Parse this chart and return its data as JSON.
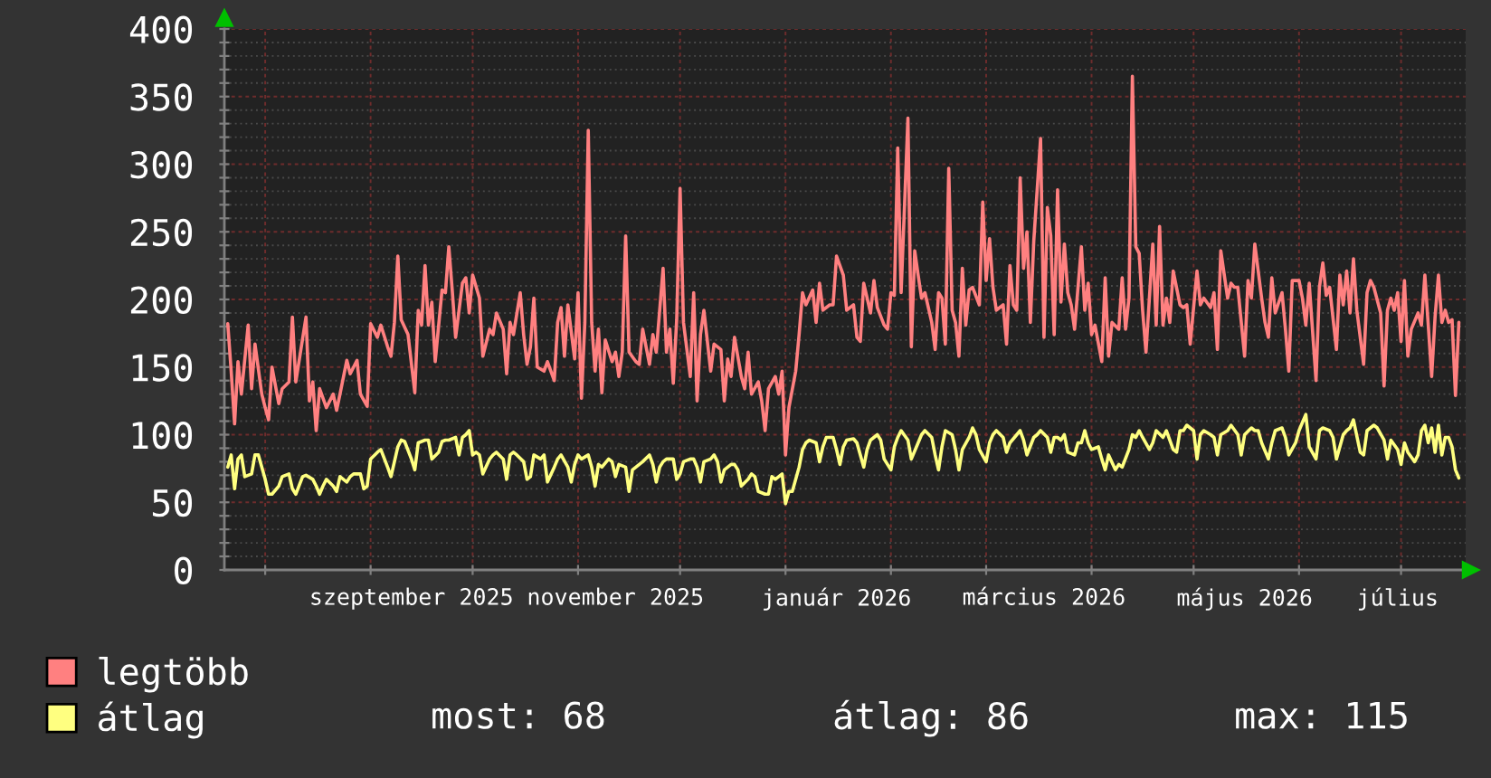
{
  "chart_data": {
    "type": "line",
    "xlim": [
      "2025-07-20",
      "2026-07-20"
    ],
    "xticks": [
      {
        "value": "2025-08-01",
        "label": null
      },
      {
        "value": "2025-09-01",
        "label": null
      },
      {
        "value": "2025-09-13",
        "label": "szeptember 2025"
      },
      {
        "value": "2025-10-01",
        "label": null
      },
      {
        "value": "2025-11-01",
        "label": null
      },
      {
        "value": "2025-11-12",
        "label": "november 2025"
      },
      {
        "value": "2025-12-01",
        "label": null
      },
      {
        "value": "2026-01-01",
        "label": null
      },
      {
        "value": "2026-01-16",
        "label": "január 2026"
      },
      {
        "value": "2026-02-01",
        "label": null
      },
      {
        "value": "2026-03-01",
        "label": null
      },
      {
        "value": "2026-03-18",
        "label": "március 2026"
      },
      {
        "value": "2026-04-01",
        "label": null
      },
      {
        "value": "2026-05-01",
        "label": null
      },
      {
        "value": "2026-05-16",
        "label": "május 2026"
      },
      {
        "value": "2026-06-01",
        "label": null
      },
      {
        "value": "2026-06-30",
        "label": "július"
      },
      {
        "value": "2026-07-01",
        "label": null
      }
    ],
    "ylim": [
      0,
      400
    ],
    "yticks": [
      0,
      {
        "value": 10,
        "label": null
      },
      {
        "value": 20,
        "label": null
      },
      {
        "value": 30,
        "label": null
      },
      {
        "value": 40,
        "label": null
      },
      50,
      {
        "value": 60,
        "label": null
      },
      {
        "value": 70,
        "label": null
      },
      {
        "value": 80,
        "label": null
      },
      {
        "value": 90,
        "label": null
      },
      100,
      {
        "value": 110,
        "label": null
      },
      {
        "value": 120,
        "label": null
      },
      {
        "value": 130,
        "label": null
      },
      {
        "value": 140,
        "label": null
      },
      150,
      {
        "value": 160,
        "label": null
      },
      {
        "value": 170,
        "label": null
      },
      {
        "value": 180,
        "label": null
      },
      {
        "value": 190,
        "label": null
      },
      200,
      {
        "value": 210,
        "label": null
      },
      {
        "value": 220,
        "label": null
      },
      {
        "value": 230,
        "label": null
      },
      {
        "value": 240,
        "label": null
      },
      250,
      {
        "value": 260,
        "label": null
      },
      {
        "value": 270,
        "label": null
      },
      {
        "value": 280,
        "label": null
      },
      {
        "value": 290,
        "label": null
      },
      300,
      {
        "value": 310,
        "label": null
      },
      {
        "value": 320,
        "label": null
      },
      {
        "value": 330,
        "label": null
      },
      {
        "value": 340,
        "label": null
      },
      350,
      {
        "value": 360,
        "label": null
      },
      {
        "value": 370,
        "label": null
      },
      {
        "value": 380,
        "label": null
      },
      {
        "value": 390,
        "label": null
      },
      400
    ],
    "grid": true,
    "legend": "bottom",
    "series": [
      {
        "name": "legtöbb",
        "color": "#ff8080",
        "x": [
          "2025-07-21",
          "2025-07-22",
          "2025-07-23",
          "2025-07-24",
          "2025-07-25",
          "2025-07-27",
          "2025-07-28",
          "2025-07-29",
          "2025-07-31",
          "2025-08-01",
          "2025-08-02",
          "2025-08-03",
          "2025-08-05",
          "2025-08-06",
          "2025-08-08",
          "2025-08-09",
          "2025-08-10",
          "2025-08-13",
          "2025-08-14",
          "2025-08-15",
          "2025-08-16",
          "2025-08-17",
          "2025-08-19",
          "2025-08-21",
          "2025-08-22",
          "2025-08-23",
          "2025-08-25",
          "2025-08-26",
          "2025-08-28",
          "2025-08-29",
          "2025-08-31",
          "2025-09-01",
          "2025-09-03",
          "2025-09-04",
          "2025-09-06",
          "2025-09-07",
          "2025-09-08",
          "2025-09-09",
          "2025-09-10",
          "2025-09-12",
          "2025-09-14",
          "2025-09-15",
          "2025-09-16",
          "2025-09-17",
          "2025-09-18",
          "2025-09-19",
          "2025-09-20",
          "2025-09-22",
          "2025-09-23",
          "2025-09-24",
          "2025-09-25",
          "2025-09-26",
          "2025-09-28",
          "2025-09-29",
          "2025-09-30",
          "2025-10-01",
          "2025-10-03",
          "2025-10-04",
          "2025-10-06",
          "2025-10-07",
          "2025-10-08",
          "2025-10-10",
          "2025-10-11",
          "2025-10-12",
          "2025-10-13",
          "2025-10-15",
          "2025-10-16",
          "2025-10-17",
          "2025-10-18",
          "2025-10-19",
          "2025-10-20",
          "2025-10-22",
          "2025-10-23",
          "2025-10-25",
          "2025-10-26",
          "2025-10-27",
          "2025-10-28",
          "2025-10-29",
          "2025-10-31",
          "2025-11-01",
          "2025-11-02",
          "2025-11-03",
          "2025-11-04",
          "2025-11-05",
          "2025-11-06",
          "2025-11-07",
          "2025-11-08",
          "2025-11-09",
          "2025-11-11",
          "2025-11-12",
          "2025-11-13",
          "2025-11-14",
          "2025-11-15",
          "2025-11-16",
          "2025-11-18",
          "2025-11-19",
          "2025-11-20",
          "2025-11-22",
          "2025-11-23",
          "2025-11-24",
          "2025-11-26",
          "2025-11-27",
          "2025-11-28",
          "2025-11-29",
          "2025-11-30",
          "2025-12-01",
          "2025-12-02",
          "2025-12-04",
          "2025-12-05",
          "2025-12-06",
          "2025-12-07",
          "2025-12-08",
          "2025-12-10",
          "2025-12-11",
          "2025-12-13",
          "2025-12-14",
          "2025-12-15",
          "2025-12-16",
          "2025-12-17",
          "2025-12-19",
          "2025-12-20",
          "2025-12-21",
          "2025-12-22",
          "2025-12-24",
          "2025-12-25",
          "2025-12-26",
          "2025-12-27",
          "2025-12-29",
          "2025-12-30",
          "2025-12-31",
          "2026-01-01",
          "2026-01-02",
          "2026-01-04",
          "2026-01-05",
          "2026-01-06",
          "2026-01-07",
          "2026-01-09",
          "2026-01-10",
          "2026-01-11",
          "2026-01-12",
          "2026-01-14",
          "2026-01-15",
          "2026-01-16",
          "2026-01-18",
          "2026-01-19",
          "2026-01-21",
          "2026-01-22",
          "2026-01-23",
          "2026-01-24",
          "2026-01-26",
          "2026-01-27",
          "2026-01-28",
          "2026-01-30",
          "2026-01-31",
          "2026-02-01",
          "2026-02-02",
          "2026-02-03",
          "2026-02-04",
          "2026-02-06",
          "2026-02-07",
          "2026-02-08",
          "2026-02-09",
          "2026-02-10",
          "2026-02-11",
          "2026-02-13",
          "2026-02-14",
          "2026-02-15",
          "2026-02-16",
          "2026-02-17",
          "2026-02-18",
          "2026-02-19",
          "2026-02-20",
          "2026-02-21",
          "2026-02-22",
          "2026-02-23",
          "2026-02-24",
          "2026-02-25",
          "2026-02-27",
          "2026-02-28",
          "2026-03-01",
          "2026-03-02",
          "2026-03-03",
          "2026-03-04",
          "2026-03-06",
          "2026-03-07",
          "2026-03-08",
          "2026-03-09",
          "2026-03-10",
          "2026-03-11",
          "2026-03-12",
          "2026-03-13",
          "2026-03-14",
          "2026-03-15",
          "2026-03-17",
          "2026-03-18",
          "2026-03-19",
          "2026-03-20",
          "2026-03-21",
          "2026-03-22",
          "2026-03-23",
          "2026-03-24",
          "2026-03-25",
          "2026-03-26",
          "2026-03-27",
          "2026-03-29",
          "2026-03-30",
          "2026-03-31",
          "2026-04-01",
          "2026-04-02",
          "2026-04-04",
          "2026-04-05",
          "2026-04-06",
          "2026-04-07",
          "2026-04-09",
          "2026-04-10",
          "2026-04-11",
          "2026-04-12",
          "2026-04-13",
          "2026-04-14",
          "2026-04-15",
          "2026-04-16",
          "2026-04-17",
          "2026-04-19",
          "2026-04-20",
          "2026-04-21",
          "2026-04-22",
          "2026-04-23",
          "2026-04-24",
          "2026-04-25",
          "2026-04-27",
          "2026-04-28",
          "2026-04-29",
          "2026-04-30",
          "2026-05-02",
          "2026-05-03",
          "2026-05-04",
          "2026-05-06",
          "2026-05-07",
          "2026-05-08",
          "2026-05-09",
          "2026-05-11",
          "2026-05-12",
          "2026-05-13",
          "2026-05-14",
          "2026-05-16",
          "2026-05-17",
          "2026-05-18",
          "2026-05-19",
          "2026-05-21",
          "2026-05-22",
          "2026-05-23",
          "2026-05-24",
          "2026-05-25",
          "2026-05-27",
          "2026-05-28",
          "2026-05-29",
          "2026-05-30",
          "2026-06-01",
          "2026-06-02",
          "2026-06-03",
          "2026-06-04",
          "2026-06-06",
          "2026-06-07",
          "2026-06-08",
          "2026-06-09",
          "2026-06-10",
          "2026-06-12",
          "2026-06-13",
          "2026-06-14",
          "2026-06-15",
          "2026-06-16",
          "2026-06-17",
          "2026-06-18",
          "2026-06-20",
          "2026-06-21",
          "2026-06-22",
          "2026-06-23",
          "2026-06-25",
          "2026-06-26",
          "2026-06-27",
          "2026-06-28",
          "2026-06-29",
          "2026-06-30",
          "2026-07-01",
          "2026-07-02",
          "2026-07-03",
          "2026-07-04",
          "2026-07-06",
          "2026-07-07",
          "2026-07-08",
          "2026-07-09",
          "2026-07-10",
          "2026-07-11",
          "2026-07-12",
          "2026-07-13",
          "2026-07-14",
          "2026-07-15",
          "2026-07-16",
          "2026-07-17",
          "2026-07-18"
        ],
        "values": [
          182,
          147,
          108,
          154,
          130,
          181,
          134,
          167,
          130,
          120,
          111,
          150,
          123,
          134,
          139,
          187,
          139,
          187,
          125,
          139,
          103,
          134,
          120,
          130,
          118,
          130,
          155,
          145,
          155,
          130,
          121,
          182,
          172,
          181,
          165,
          158,
          183,
          232,
          185,
          174,
          131,
          192,
          181,
          225,
          181,
          198,
          154,
          207,
          205,
          239,
          207,
          172,
          212,
          216,
          190,
          218,
          201,
          158,
          178,
          174,
          190,
          178,
          145,
          183,
          174,
          205,
          174,
          152,
          165,
          201,
          150,
          147,
          154,
          140,
          183,
          194,
          158,
          196,
          156,
          205,
          127,
          183,
          325,
          183,
          147,
          178,
          131,
          170,
          154,
          161,
          143,
          161,
          247,
          161,
          154,
          152,
          178,
          152,
          174,
          161,
          223,
          161,
          178,
          138,
          185,
          282,
          183,
          143,
          205,
          125,
          174,
          192,
          147,
          167,
          163,
          125,
          156,
          143,
          172,
          143,
          134,
          161,
          130,
          139,
          125,
          103,
          134,
          143,
          130,
          147,
          85,
          120,
          147,
          174,
          205,
          196,
          207,
          183,
          212,
          192,
          196,
          196,
          232,
          218,
          192,
          196,
          172,
          169,
          212,
          190,
          214,
          194,
          181,
          178,
          205,
          203,
          312,
          205,
          334,
          165,
          236,
          218,
          201,
          205,
          183,
          163,
          205,
          201,
          167,
          297,
          192,
          183,
          158,
          223,
          181,
          207,
          209,
          196,
          272,
          214,
          245,
          209,
          192,
          196,
          167,
          225,
          196,
          192,
          290,
          223,
          250,
          183,
          243,
          319,
          172,
          268,
          247,
          174,
          281,
          198,
          241,
          205,
          196,
          178,
          239,
          192,
          212,
          174,
          181,
          154,
          216,
          158,
          183,
          178,
          216,
          178,
          201,
          365,
          239,
          234,
          192,
          161,
          241,
          181,
          254,
          181,
          201,
          183,
          221,
          196,
          194,
          196,
          167,
          221,
          196,
          201,
          194,
          205,
          163,
          236,
          201,
          212,
          209,
          209,
          158,
          214,
          201,
          241,
          201,
          183,
          172,
          216,
          190,
          205,
          178,
          147,
          214,
          214,
          201,
          181,
          212,
          140,
          209,
          227,
          203,
          209,
          163,
          218,
          196,
          221,
          190,
          230,
          192,
          152,
          205,
          214,
          209,
          190,
          136,
          192,
          201,
          192,
          205,
          169,
          214,
          158,
          178,
          190,
          181,
          218,
          181,
          143,
          187,
          218,
          183,
          192,
          183,
          185,
          129,
          183
        ]
      },
      {
        "name": "átlag",
        "color": "#ffff80",
        "x": [
          "2025-07-21",
          "2025-07-22",
          "2025-07-23",
          "2025-07-24",
          "2025-07-25",
          "2025-07-26",
          "2025-07-28",
          "2025-07-29",
          "2025-07-30",
          "2025-08-01",
          "2025-08-02",
          "2025-08-03",
          "2025-08-05",
          "2025-08-06",
          "2025-08-08",
          "2025-08-09",
          "2025-08-10",
          "2025-08-12",
          "2025-08-13",
          "2025-08-15",
          "2025-08-16",
          "2025-08-17",
          "2025-08-18",
          "2025-08-19",
          "2025-08-21",
          "2025-08-22",
          "2025-08-23",
          "2025-08-25",
          "2025-08-26",
          "2025-08-27",
          "2025-08-29",
          "2025-08-30",
          "2025-08-31",
          "2025-09-01",
          "2025-09-03",
          "2025-09-04",
          "2025-09-06",
          "2025-09-07",
          "2025-09-09",
          "2025-09-10",
          "2025-09-11",
          "2025-09-13",
          "2025-09-14",
          "2025-09-15",
          "2025-09-17",
          "2025-09-18",
          "2025-09-19",
          "2025-09-21",
          "2025-09-22",
          "2025-09-23",
          "2025-09-24",
          "2025-09-26",
          "2025-09-27",
          "2025-09-28",
          "2025-09-29",
          "2025-09-30",
          "2025-10-01",
          "2025-10-02",
          "2025-10-03",
          "2025-10-04",
          "2025-10-06",
          "2025-10-07",
          "2025-10-08",
          "2025-10-10",
          "2025-10-11",
          "2025-10-12",
          "2025-10-13",
          "2025-10-14",
          "2025-10-16",
          "2025-10-17",
          "2025-10-18",
          "2025-10-19",
          "2025-10-21",
          "2025-10-22",
          "2025-10-23",
          "2025-10-25",
          "2025-10-26",
          "2025-10-27",
          "2025-10-29",
          "2025-10-30",
          "2025-10-31",
          "2025-11-01",
          "2025-11-02",
          "2025-11-04",
          "2025-11-05",
          "2025-11-06",
          "2025-11-07",
          "2025-11-08",
          "2025-11-10",
          "2025-11-11",
          "2025-11-12",
          "2025-11-13",
          "2025-11-15",
          "2025-11-16",
          "2025-11-17",
          "2025-11-18",
          "2025-11-19",
          "2025-11-20",
          "2025-11-22",
          "2025-11-23",
          "2025-11-24",
          "2025-11-25",
          "2025-11-26",
          "2025-11-27",
          "2025-11-29",
          "2025-11-30",
          "2025-12-01",
          "2025-12-02",
          "2025-12-04",
          "2025-12-05",
          "2025-12-06",
          "2025-12-07",
          "2025-12-08",
          "2025-12-10",
          "2025-12-11",
          "2025-12-12",
          "2025-12-13",
          "2025-12-14",
          "2025-12-16",
          "2025-12-17",
          "2025-12-18",
          "2025-12-19",
          "2025-12-21",
          "2025-12-22",
          "2025-12-23",
          "2025-12-24",
          "2025-12-26",
          "2025-12-27",
          "2025-12-28",
          "2025-12-29",
          "2025-12-31",
          "2026-01-01",
          "2026-01-02",
          "2026-01-03",
          "2026-01-05",
          "2026-01-06",
          "2026-01-07",
          "2026-01-08",
          "2026-01-10",
          "2026-01-11",
          "2026-01-12",
          "2026-01-13",
          "2026-01-15",
          "2026-01-16",
          "2026-01-17",
          "2026-01-18",
          "2026-01-19",
          "2026-01-21",
          "2026-01-22",
          "2026-01-24",
          "2026-01-25",
          "2026-01-26",
          "2026-01-28",
          "2026-01-29",
          "2026-01-30",
          "2026-02-01",
          "2026-02-02",
          "2026-02-03",
          "2026-02-04",
          "2026-02-06",
          "2026-02-07",
          "2026-02-09",
          "2026-02-10",
          "2026-02-11",
          "2026-02-13",
          "2026-02-14",
          "2026-02-15",
          "2026-02-16",
          "2026-02-17",
          "2026-02-19",
          "2026-02-20",
          "2026-02-21",
          "2026-02-22",
          "2026-02-24",
          "2026-02-25",
          "2026-02-26",
          "2026-02-27",
          "2026-03-01",
          "2026-03-02",
          "2026-03-03",
          "2026-03-04",
          "2026-03-06",
          "2026-03-07",
          "2026-03-08",
          "2026-03-10",
          "2026-03-11",
          "2026-03-12",
          "2026-03-13",
          "2026-03-15",
          "2026-03-16",
          "2026-03-17",
          "2026-03-19",
          "2026-03-20",
          "2026-03-21",
          "2026-03-22",
          "2026-03-23",
          "2026-03-24",
          "2026-03-25",
          "2026-03-27",
          "2026-03-28",
          "2026-03-29",
          "2026-03-30",
          "2026-03-31",
          "2026-04-01",
          "2026-04-03",
          "2026-04-04",
          "2026-04-05",
          "2026-04-06",
          "2026-04-08",
          "2026-04-09",
          "2026-04-10",
          "2026-04-12",
          "2026-04-13",
          "2026-04-14",
          "2026-04-15",
          "2026-04-16",
          "2026-04-18",
          "2026-04-19",
          "2026-04-20",
          "2026-04-22",
          "2026-04-23",
          "2026-04-25",
          "2026-04-26",
          "2026-04-27",
          "2026-04-28",
          "2026-04-29",
          "2026-05-01",
          "2026-05-02",
          "2026-05-03",
          "2026-05-04",
          "2026-05-06",
          "2026-05-07",
          "2026-05-08",
          "2026-05-09",
          "2026-05-11",
          "2026-05-12",
          "2026-05-14",
          "2026-05-15",
          "2026-05-16",
          "2026-05-18",
          "2026-05-19",
          "2026-05-20",
          "2026-05-21",
          "2026-05-23",
          "2026-05-24",
          "2026-05-25",
          "2026-05-27",
          "2026-05-28",
          "2026-05-29",
          "2026-05-31",
          "2026-06-01",
          "2026-06-02",
          "2026-06-03",
          "2026-06-04",
          "2026-06-06",
          "2026-06-07",
          "2026-06-08",
          "2026-06-10",
          "2026-06-11",
          "2026-06-12",
          "2026-06-14",
          "2026-06-15",
          "2026-06-16",
          "2026-06-17",
          "2026-06-19",
          "2026-06-20",
          "2026-06-21",
          "2026-06-23",
          "2026-06-24",
          "2026-06-26",
          "2026-06-27",
          "2026-06-28",
          "2026-06-30",
          "2026-07-01",
          "2026-07-02",
          "2026-07-03",
          "2026-07-05",
          "2026-07-06",
          "2026-07-07",
          "2026-07-08",
          "2026-07-09",
          "2026-07-10",
          "2026-07-11",
          "2026-07-12",
          "2026-07-13",
          "2026-07-14",
          "2026-07-15",
          "2026-07-16",
          "2026-07-17",
          "2026-07-18"
        ],
        "values": [
          76,
          85,
          60,
          82,
          85,
          69,
          71,
          85,
          85,
          67,
          56,
          56,
          62,
          69,
          71,
          60,
          56,
          69,
          70,
          67,
          62,
          56,
          62,
          67,
          62,
          58,
          69,
          65,
          69,
          71,
          71,
          60,
          62,
          82,
          87,
          89,
          76,
          69,
          91,
          96,
          95,
          82,
          74,
          94,
          96,
          96,
          82,
          87,
          95,
          96,
          96,
          98,
          85,
          98,
          100,
          103,
          85,
          87,
          85,
          71,
          82,
          85,
          87,
          82,
          67,
          85,
          87,
          85,
          80,
          67,
          69,
          85,
          82,
          85,
          65,
          76,
          82,
          85,
          76,
          65,
          78,
          85,
          82,
          85,
          76,
          62,
          78,
          76,
          82,
          80,
          69,
          78,
          76,
          58,
          74,
          76,
          78,
          80,
          85,
          78,
          65,
          76,
          80,
          82,
          82,
          67,
          71,
          80,
          82,
          82,
          76,
          65,
          80,
          82,
          85,
          80,
          65,
          74,
          78,
          78,
          74,
          62,
          67,
          71,
          69,
          58,
          56,
          56,
          69,
          67,
          71,
          49,
          58,
          58,
          76,
          89,
          94,
          96,
          94,
          80,
          91,
          98,
          98,
          89,
          78,
          91,
          96,
          97,
          94,
          76,
          89,
          96,
          100,
          96,
          82,
          74,
          91,
          98,
          103,
          96,
          82,
          94,
          100,
          103,
          98,
          85,
          74,
          91,
          103,
          100,
          89,
          74,
          89,
          98,
          105,
          100,
          89,
          80,
          94,
          100,
          103,
          98,
          87,
          94,
          100,
          103,
          96,
          85,
          98,
          100,
          103,
          98,
          87,
          98,
          98,
          96,
          100,
          87,
          85,
          94,
          94,
          103,
          94,
          89,
          91,
          82,
          74,
          85,
          74,
          78,
          76,
          89,
          100,
          98,
          103,
          98,
          89,
          94,
          103,
          98,
          103,
          89,
          87,
          103,
          103,
          107,
          103,
          82,
          100,
          103,
          100,
          98,
          85,
          100,
          103,
          107,
          100,
          85,
          100,
          105,
          103,
          103,
          94,
          82,
          94,
          103,
          105,
          98,
          85,
          94,
          103,
          109,
          115,
          91,
          82,
          103,
          105,
          103,
          98,
          82,
          100,
          103,
          105,
          111,
          87,
          85,
          103,
          107,
          105,
          96,
          82,
          96,
          89,
          78,
          94,
          87,
          80,
          85,
          103,
          107,
          94,
          105,
          87,
          107,
          85,
          98,
          98,
          91,
          74,
          68
        ]
      }
    ],
    "annotations": [
      "most: 68",
      "átlag: 86",
      "max: 115"
    ]
  }
}
